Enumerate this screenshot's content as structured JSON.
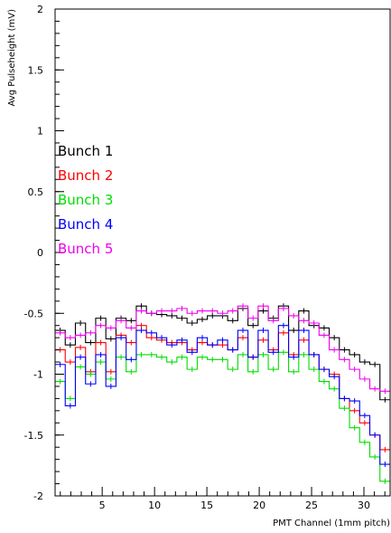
{
  "chart_data": {
    "type": "line",
    "title": "",
    "xlabel": "PMT Channel (1mm pitch)",
    "ylabel": "Avg Pulseheight (mV)",
    "xlim": [
      0.5,
      32.5
    ],
    "ylim": [
      -2,
      2
    ],
    "xticks": [
      5,
      10,
      15,
      20,
      25,
      30
    ],
    "yticks": [
      -2,
      -1.5,
      -1,
      -0.5,
      0,
      0.5,
      1,
      1.5,
      2
    ],
    "ytick_labels": [
      "-2",
      "-1.5",
      "-1",
      "-0.5",
      "0",
      "0.5",
      "1",
      "1.5",
      "2"
    ],
    "grid": false,
    "legend_position": "middle-left",
    "style": "step histogram with error crosses",
    "series": [
      {
        "name": "Bunch 1",
        "color": "#000000",
        "values": [
          -0.64,
          -0.76,
          -0.58,
          -0.74,
          -0.54,
          -0.71,
          -0.54,
          -0.56,
          -0.44,
          -0.5,
          -0.51,
          -0.52,
          -0.54,
          -0.58,
          -0.55,
          -0.52,
          -0.52,
          -0.56,
          -0.46,
          -0.6,
          -0.48,
          -0.54,
          -0.44,
          -0.64,
          -0.48,
          -0.6,
          -0.62,
          -0.7,
          -0.8,
          -0.84,
          -0.9,
          -0.92,
          -1.21
        ]
      },
      {
        "name": "Bunch 2",
        "color": "#ff0000",
        "values": [
          -0.8,
          -0.9,
          -0.78,
          -0.98,
          -0.74,
          -0.98,
          -0.68,
          -0.74,
          -0.6,
          -0.7,
          -0.72,
          -0.74,
          -0.74,
          -0.8,
          -0.74,
          -0.76,
          -0.76,
          -0.8,
          -0.7,
          -0.86,
          -0.72,
          -0.8,
          -0.66,
          -0.84,
          -0.72,
          -0.84,
          -0.96,
          -1.0,
          -1.2,
          -1.3,
          -1.4,
          -1.5,
          -1.62
        ]
      },
      {
        "name": "Bunch 3",
        "color": "#00dd00",
        "values": [
          -1.06,
          -1.2,
          -0.94,
          -1.0,
          -0.9,
          -1.04,
          -0.86,
          -0.98,
          -0.84,
          -0.84,
          -0.86,
          -0.9,
          -0.86,
          -0.96,
          -0.86,
          -0.88,
          -0.88,
          -0.96,
          -0.84,
          -0.98,
          -0.84,
          -0.96,
          -0.82,
          -0.98,
          -0.84,
          -0.96,
          -1.06,
          -1.12,
          -1.28,
          -1.44,
          -1.56,
          -1.68,
          -1.88
        ]
      },
      {
        "name": "Bunch 4",
        "color": "#0000ff",
        "values": [
          -0.92,
          -1.26,
          -0.86,
          -1.08,
          -0.84,
          -1.1,
          -0.7,
          -0.88,
          -0.64,
          -0.66,
          -0.7,
          -0.76,
          -0.72,
          -0.82,
          -0.7,
          -0.76,
          -0.72,
          -0.8,
          -0.64,
          -0.86,
          -0.64,
          -0.82,
          -0.6,
          -0.86,
          -0.64,
          -0.84,
          -0.96,
          -1.02,
          -1.2,
          -1.22,
          -1.34,
          -1.5,
          -1.74
        ]
      },
      {
        "name": "Bunch 5",
        "color": "#ee00ee",
        "values": [
          -0.66,
          -0.7,
          -0.68,
          -0.66,
          -0.6,
          -0.62,
          -0.56,
          -0.62,
          -0.48,
          -0.5,
          -0.48,
          -0.48,
          -0.46,
          -0.5,
          -0.48,
          -0.48,
          -0.5,
          -0.48,
          -0.44,
          -0.54,
          -0.44,
          -0.56,
          -0.46,
          -0.52,
          -0.56,
          -0.58,
          -0.68,
          -0.8,
          -0.88,
          -0.96,
          -1.04,
          -1.12,
          -1.14
        ]
      }
    ]
  }
}
